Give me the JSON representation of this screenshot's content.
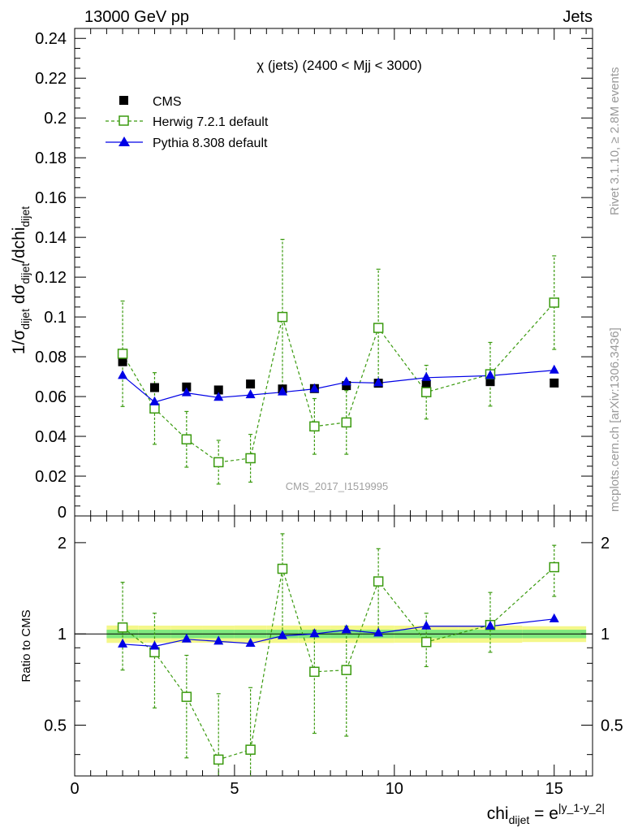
{
  "header": {
    "left": "13000 GeV pp",
    "right": "Jets"
  },
  "side_labels": {
    "rivet": "Rivet 3.1.10, ≥ 2.8M events",
    "mcplots": "mcplots.cern.ch [arXiv:1306.3436]"
  },
  "watermark": "CMS_2017_I1519995",
  "main_title": "χ (jets) (2400 < Mjj < 3000)",
  "ylabel_main": "1/σdijet dσdijet/dchidijet",
  "ylabel_ratio": "Ratio to CMS",
  "xlabel": "chidijet = e|y_1-y_2|",
  "colors": {
    "cms": "#000000",
    "herwig": "#3a9a0e",
    "pythia": "#0000e6",
    "band_outer": "#f4f78a",
    "band_inner": "#7ee87e"
  },
  "chart_data": [
    {
      "type": "scatter",
      "title": "χ (jets) (2400 < Mjj < 3000)",
      "xlim": [
        0,
        16.2
      ],
      "ylim": [
        0,
        0.245
      ],
      "yticks": [
        0,
        0.02,
        0.04,
        0.06,
        0.08,
        0.1,
        0.12,
        0.14,
        0.16,
        0.18,
        0.2,
        0.22,
        0.24
      ],
      "ytick_labels": [
        "0",
        "0.02",
        "0.04",
        "0.06",
        "0.08",
        "0.1",
        "0.12",
        "0.14",
        "0.16",
        "0.18",
        "0.2",
        "0.22",
        "0.24"
      ],
      "x": [
        1.5,
        2.5,
        3.5,
        4.5,
        5.5,
        6.5,
        7.5,
        8.5,
        9.5,
        11,
        13,
        15
      ],
      "series": [
        {
          "name": "CMS",
          "marker": "square",
          "values": [
            0.0775,
            0.0645,
            0.0648,
            0.0633,
            0.0663,
            0.0638,
            0.064,
            0.0655,
            0.0667,
            0.066,
            0.0675,
            0.0668
          ]
        },
        {
          "name": "Herwig 7.2.1 default",
          "marker": "open-square",
          "line": "dashed",
          "values": [
            0.0815,
            0.054,
            0.0385,
            0.027,
            0.029,
            0.1,
            0.045,
            0.047,
            0.0945,
            0.0622,
            0.0712,
            0.1072
          ],
          "err": [
            0.0265,
            0.018,
            0.014,
            0.011,
            0.012,
            0.039,
            0.014,
            0.016,
            0.0295,
            0.0135,
            0.016,
            0.0235
          ]
        },
        {
          "name": "Pythia 8.308 default",
          "marker": "triangle",
          "line": "solid",
          "values": [
            0.0705,
            0.0572,
            0.0618,
            0.0595,
            0.0608,
            0.0622,
            0.0638,
            0.0672,
            0.0668,
            0.0695,
            0.0705,
            0.0732
          ]
        }
      ]
    },
    {
      "type": "scatter",
      "ylabel": "Ratio to CMS",
      "xlabel": "chidijet = e|y_1-y_2|",
      "xlim": [
        0,
        16.2
      ],
      "ylim": [
        0.34,
        2.45
      ],
      "ylog": true,
      "yticks": [
        0.5,
        1,
        2
      ],
      "ytick_labels": [
        "0.5",
        "1",
        "2"
      ],
      "xticks": [
        0,
        5,
        10,
        15
      ],
      "xtick_labels": [
        "0",
        "5",
        "10",
        "15"
      ],
      "x": [
        1.5,
        2.5,
        3.5,
        4.5,
        5.5,
        6.5,
        7.5,
        8.5,
        9.5,
        11,
        13,
        15
      ],
      "band_outer": [
        0.066,
        0.065,
        0.065,
        0.065,
        0.066,
        0.066,
        0.066,
        0.066,
        0.066,
        0.065,
        0.065,
        0.06
      ],
      "band_inner": [
        0.032,
        0.032,
        0.032,
        0.032,
        0.032,
        0.032,
        0.032,
        0.032,
        0.032,
        0.032,
        0.032,
        0.032
      ],
      "series": [
        {
          "name": "Herwig 7.2.1 default",
          "values": [
            1.05,
            0.87,
            0.62,
            0.385,
            0.415,
            1.64,
            0.75,
            0.76,
            1.49,
            0.94,
            1.07,
            1.66
          ],
          "err_lo": [
            0.29,
            0.3,
            0.23,
            0.125,
            0.175,
            0.64,
            0.28,
            0.3,
            0.48,
            0.16,
            0.2,
            0.33
          ],
          "err_hi": [
            0.43,
            0.3,
            0.23,
            0.25,
            0.25,
            0.5,
            0.28,
            0.3,
            0.42,
            0.23,
            0.3,
            0.3
          ]
        },
        {
          "name": "Pythia 8.308 default",
          "values": [
            0.925,
            0.91,
            0.96,
            0.945,
            0.93,
            0.985,
            1.0,
            1.03,
            1.005,
            1.06,
            1.06,
            1.12
          ]
        }
      ]
    }
  ]
}
